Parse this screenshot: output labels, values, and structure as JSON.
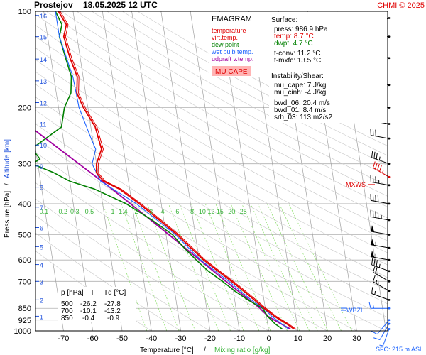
{
  "header": {
    "station": "Prostejov",
    "datetime": "18.05.2025 12 UTC",
    "credit": "CHMI © 2025"
  },
  "legend": {
    "title": "EMAGRAM",
    "items": [
      {
        "label": "temperature",
        "color": "#e00000"
      },
      {
        "label": "virt.temp.",
        "color": "#e00000"
      },
      {
        "label": "dew point",
        "color": "#008000"
      },
      {
        "label": "wet bulb temp.",
        "color": "#1e64ff"
      },
      {
        "label": "udpraft v.temp.",
        "color": "#a000a0"
      }
    ],
    "badge": "MU CAPE",
    "badge_color": "#ffb4b4"
  },
  "info": {
    "surface_title": "Surface:",
    "surface": [
      {
        "label": "press: 986.9 hPa",
        "color": "#000000"
      },
      {
        "label": "temp: 8.7 °C",
        "color": "#e00000"
      },
      {
        "label": "dwpt: 4.7 °C",
        "color": "#008000"
      }
    ],
    "conv": [
      "t-conv: 11.2 °C",
      "t-mxfc: 13.5 °C"
    ],
    "instability_title": "Instability/Shear:",
    "instability": [
      "mu_cape: 7 J/kg",
      "mu_cinh: -4 J/kg"
    ],
    "shear": [
      "bwd_06: 20.4 m/s",
      "bwd_01: 8.4 m/s",
      "srh_03: 113 m2/s2"
    ]
  },
  "markers": {
    "mxws": "MXWS",
    "wbzl": "WBZL",
    "sfc": "SFC: 215 m ASL"
  },
  "table": {
    "headers": [
      "p [hPa]",
      "T",
      "Td [°C]"
    ],
    "rows": [
      [
        "500",
        "-26.2",
        "-27.8"
      ],
      [
        "700",
        "-10.1",
        "-13.2"
      ],
      [
        "850",
        "-0.4",
        "-0.9"
      ]
    ]
  },
  "axes": {
    "xlabel_a": "Temperature [°C]",
    "xlabel_sep": "/",
    "xlabel_b": "Mixing ratio [g/kg]",
    "ylabel_a": "Pressure [hPa]",
    "ylabel_sep": "/",
    "ylabel_b": "Altitude [km]"
  },
  "colors": {
    "temperature": "#e00000",
    "dewpoint": "#008000",
    "wetbulb": "#1e64ff",
    "parcel": "#a000a0",
    "mixing": "#88dd66",
    "isotherm": "#a0a0a0",
    "altitude": "#1e50dc"
  },
  "chart_data": {
    "type": "line",
    "xlabel": "Temperature [°C]",
    "ylabel": "Pressure [hPa]",
    "y_scale": "log",
    "xlim": [
      -80,
      40
    ],
    "ylim": [
      1000,
      100
    ],
    "x_ticks": [
      "-70",
      "-60",
      "-50",
      "-40",
      "-30",
      "-20",
      "-10",
      "0",
      "10",
      "20",
      "30"
    ],
    "y_ticks": [
      "100",
      "200",
      "300",
      "400",
      "500",
      "600",
      "700",
      "850",
      "925",
      "1000"
    ],
    "y_tick_values": [
      100,
      200,
      300,
      400,
      500,
      600,
      700,
      850,
      925,
      1000
    ],
    "altitude_ticks": [
      "1",
      "2",
      "3",
      "4",
      "5",
      "6",
      "7",
      "8",
      "9",
      "10",
      "11",
      "12",
      "13",
      "14",
      "15",
      "16"
    ],
    "altitude_pressures": [
      900,
      800,
      700,
      620,
      545,
      475,
      410,
      355,
      305,
      262,
      225,
      193,
      165,
      141,
      120,
      103
    ],
    "mixing_ratio_labels": [
      "0.1",
      "0.2",
      "0.3",
      "0.5",
      "1",
      "1.4",
      "2",
      "3",
      "4",
      "6",
      "8",
      "10",
      "12",
      "15",
      "20",
      "25"
    ],
    "mixing_label_x": [
      -70,
      -63.5,
      -59.5,
      -54.5,
      -46.5,
      -43,
      -38.5,
      -33.5,
      -29.5,
      -24.5,
      -19.5,
      -16,
      -13,
      -10,
      -6,
      -2
    ],
    "mixing_label_pressure": 400,
    "temperature": {
      "p": [
        987,
        950,
        925,
        900,
        850,
        800,
        750,
        700,
        650,
        600,
        550,
        500,
        450,
        400,
        360,
        340,
        320,
        300,
        270,
        250,
        230,
        200,
        180,
        160,
        140,
        120,
        110,
        100
      ],
      "t": [
        8.7,
        6.5,
        4.6,
        2.7,
        -0.4,
        -3.3,
        -6.5,
        -10.1,
        -14.2,
        -18.5,
        -22.2,
        -26.2,
        -31.5,
        -37.5,
        -43.5,
        -48.5,
        -50.5,
        -50.0,
        -47.5,
        -48.0,
        -48.5,
        -51.5,
        -53.0,
        -52.0,
        -53.5,
        -54.5,
        -53.0,
        -55.0
      ]
    },
    "dewpoint": {
      "p": [
        987,
        950,
        925,
        900,
        850,
        800,
        750,
        700,
        650,
        600,
        550,
        500,
        450,
        400,
        360,
        340,
        320,
        300,
        290,
        280,
        270,
        250,
        230,
        200,
        180,
        160,
        140,
        120,
        110,
        100
      ],
      "td": [
        4.7,
        2.5,
        1.5,
        0.3,
        -0.9,
        -5.5,
        -9.5,
        -13.2,
        -17.5,
        -21.0,
        -24.5,
        -27.8,
        -34.0,
        -42.0,
        -52.0,
        -60.0,
        -65.0,
        -72.0,
        -69.0,
        -70.0,
        -71.5,
        -66.0,
        -60.0,
        -58.0,
        -55.0,
        -54.0,
        -55.0,
        -56.0,
        -54.5,
        -56.0
      ]
    },
    "wetbulb": {
      "p": [
        987,
        950,
        925,
        900,
        850,
        800,
        700,
        600,
        500,
        400,
        340,
        300,
        270,
        250,
        200,
        160,
        120,
        100
      ],
      "tw": [
        6.8,
        4.8,
        3.2,
        1.8,
        -0.6,
        -4.3,
        -11.0,
        -19.5,
        -26.8,
        -38.5,
        -49.5,
        -51.5,
        -49.5,
        -50.5,
        -53.0,
        -53.5,
        -56.0,
        -56.0
      ]
    },
    "parcel": {
      "p": [
        987,
        950,
        925,
        900,
        850,
        800,
        700,
        600,
        500,
        400,
        350,
        300,
        250,
        220
      ],
      "t": [
        7.5,
        4.5,
        2.5,
        0.5,
        -1.8,
        -5.0,
        -12.0,
        -19.8,
        -29.0,
        -40.5,
        -47.5,
        -56.0,
        -66.0,
        -73.0
      ]
    },
    "wind": {
      "p": [
        987,
        950,
        925,
        850,
        800,
        750,
        700,
        650,
        600,
        550,
        500,
        450,
        400,
        350,
        330,
        300,
        250,
        225,
        200,
        170,
        140,
        120,
        105
      ],
      "dir": [
        200,
        210,
        220,
        270,
        290,
        300,
        300,
        290,
        280,
        280,
        280,
        280,
        280,
        280,
        300,
        290,
        280,
        280,
        280,
        280,
        280,
        270,
        250
      ],
      "spd_kt": [
        6,
        10,
        12,
        15,
        17,
        17,
        20,
        35,
        55,
        58,
        52,
        45,
        42,
        38,
        45,
        36,
        30,
        28,
        25,
        20,
        15,
        12,
        15
      ]
    }
  }
}
